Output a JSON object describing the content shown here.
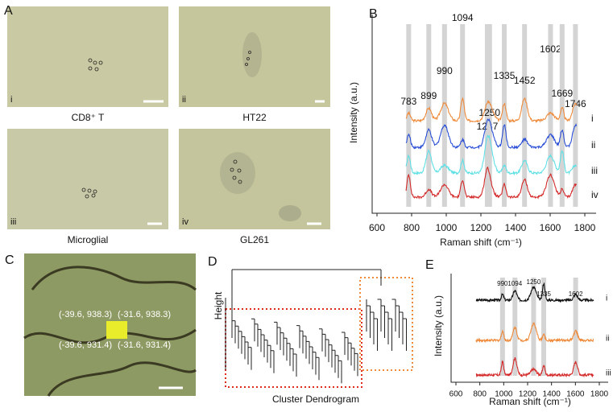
{
  "panels": {
    "A": {
      "label": "A",
      "images": [
        {
          "roman": "i",
          "caption": "CD8⁺ T"
        },
        {
          "roman": "ii",
          "caption": "HT22"
        },
        {
          "roman": "iii",
          "caption": "Microglial"
        },
        {
          "roman": "iv",
          "caption": "GL261"
        }
      ]
    },
    "B": {
      "label": "B",
      "y_label": "Intensity (a.u.)",
      "x_label": "Raman shift (cm⁻¹)",
      "x_ticks": [
        600,
        800,
        1000,
        1200,
        1400,
        1600,
        1800
      ],
      "peaks": [
        783,
        899,
        990,
        1094,
        1237,
        1250,
        1335,
        1452,
        1602,
        1669,
        1746
      ],
      "traces": [
        "i",
        "ii",
        "iii",
        "iv"
      ]
    },
    "C": {
      "label": "C",
      "coordinates": [
        "(-39.6, 938.3)",
        "(-31.6, 938.3)",
        "(-39.6, 931.4)",
        "(-31.6, 931.4)"
      ]
    },
    "D": {
      "label": "D",
      "y_label": "Height",
      "x_label": "Cluster Dendrogram"
    },
    "E": {
      "label": "E",
      "y_label": "Intensity (a.u.)",
      "x_label": "Raman shift (cm⁻¹)",
      "x_ticks": [
        600,
        800,
        1000,
        1200,
        1400,
        1600,
        1800
      ],
      "peaks": [
        990,
        1094,
        1250,
        1335,
        1602
      ],
      "traces": [
        "i",
        "ii",
        "iii"
      ]
    }
  }
}
